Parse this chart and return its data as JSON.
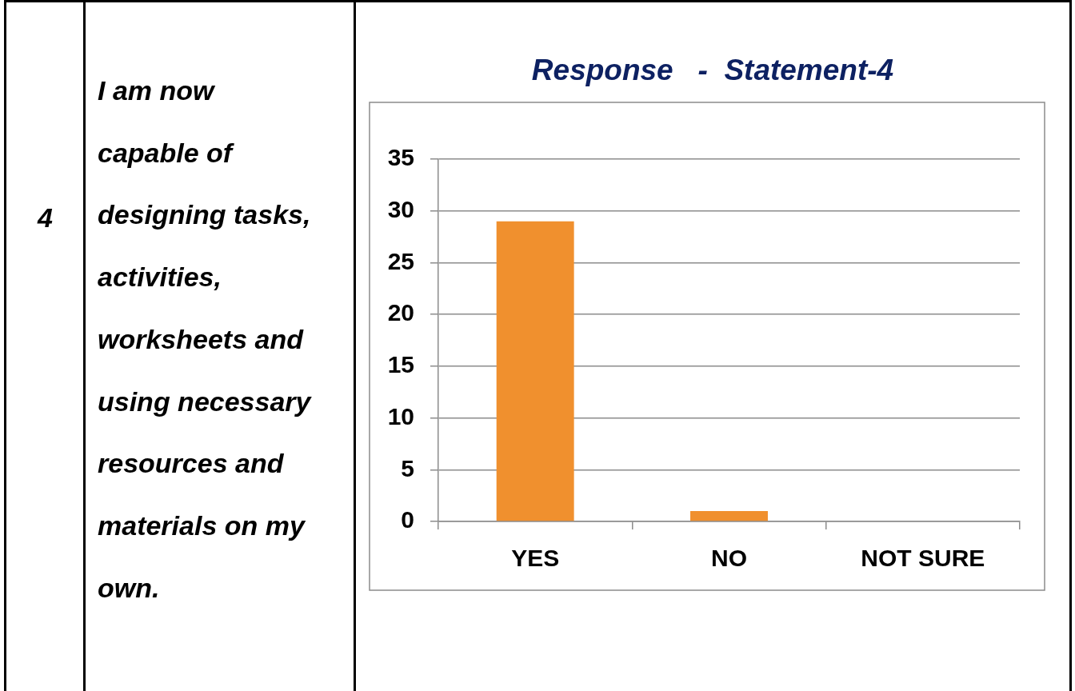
{
  "chart_data": [
    {
      "type": "other",
      "annotations": [
        "4",
        "I am now capable of designing tasks, activities, worksheets and using necessary resources and materials on my own."
      ]
    },
    {
      "type": "bar",
      "title": "Response   -  Statement-4",
      "categories": [
        "YES",
        "NO",
        "NOT SURE"
      ],
      "values": [
        29,
        1,
        0
      ],
      "color": "#f0902e",
      "ylim": [
        0,
        35
      ],
      "yticks": [
        0,
        5,
        10,
        15,
        20,
        25,
        30,
        35
      ],
      "grid": "y"
    }
  ]
}
